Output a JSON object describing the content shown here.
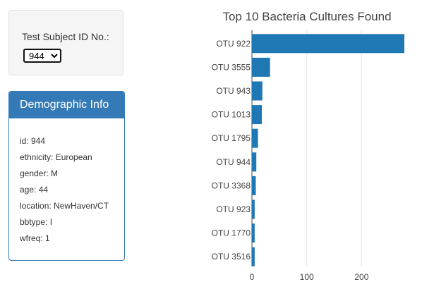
{
  "selector": {
    "label": "Test Subject ID No.:",
    "selected": "944"
  },
  "demographics": {
    "title": "Demographic Info",
    "lines": [
      "id: 944",
      "ethnicity: European",
      "gender: M",
      "age: 44",
      "location: NewHaven/CT",
      "bbtype: I",
      "wfreq: 1"
    ]
  },
  "colors": {
    "bar": "#1f77b4",
    "panel_heading": "#337ab7"
  },
  "chart_data": {
    "type": "bar",
    "orientation": "horizontal",
    "title": "Top 10 Bacteria Cultures Found",
    "categories": [
      "OTU 922",
      "OTU 3555",
      "OTU 943",
      "OTU 1013",
      "OTU 1795",
      "OTU 944",
      "OTU 3368",
      "OTU 923",
      "OTU 1770",
      "OTU 3516"
    ],
    "values": [
      278,
      33,
      19,
      18,
      11,
      8,
      7,
      5,
      5,
      5
    ],
    "xticks": [
      0,
      100,
      200
    ],
    "xlim": [
      0,
      278
    ],
    "grid": true
  }
}
